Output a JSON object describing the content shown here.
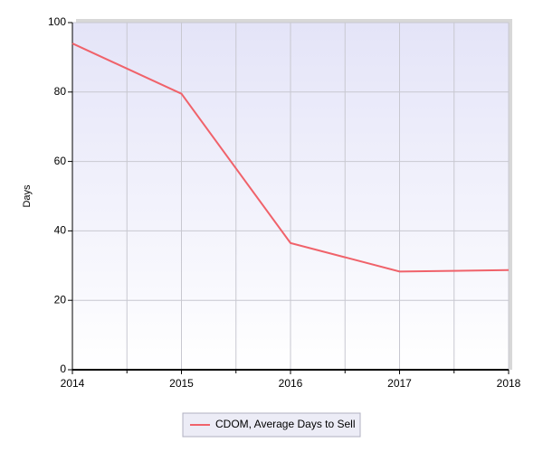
{
  "chart_data": {
    "type": "line",
    "y_label": "Days",
    "x": [
      2014,
      2015,
      2016,
      2017,
      2018
    ],
    "series": [
      {
        "name": "CDOM, Average Days to Sell",
        "color": "#f0626a",
        "values": [
          94,
          79.5,
          36.5,
          28.3,
          28.7
        ]
      }
    ],
    "xlim": [
      2014,
      2018
    ],
    "xticks": [
      2014,
      2015,
      2016,
      2017,
      2018
    ],
    "x_minor_ticks": [
      2014.5,
      2015.5,
      2016.5,
      2017.5
    ],
    "ylim": [
      0,
      100
    ],
    "yticks": [
      0,
      20,
      40,
      60,
      80,
      100
    ],
    "grid": true,
    "legend": "bottom"
  }
}
